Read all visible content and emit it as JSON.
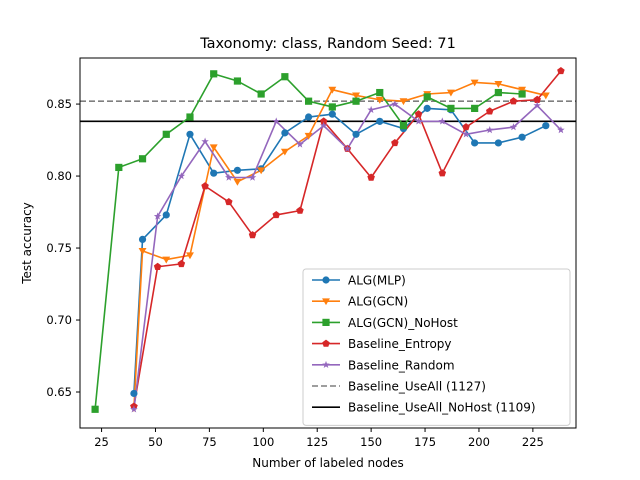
{
  "chart_data": {
    "type": "line",
    "title": "Taxonomy: class, Random Seed: 71",
    "xlabel": "Number of labeled nodes",
    "ylabel": "Test accuracy",
    "xlim": [
      15,
      245
    ],
    "ylim": [
      0.625,
      0.882
    ],
    "xticks": [
      25,
      50,
      75,
      100,
      125,
      150,
      175,
      200,
      225
    ],
    "xtick_labels": [
      "25",
      "50",
      "75",
      "100",
      "125",
      "150",
      "175",
      "200",
      "225"
    ],
    "yticks": [
      0.65,
      0.7,
      0.75,
      0.8,
      0.85
    ],
    "ytick_labels": [
      "0.65",
      "0.70",
      "0.75",
      "0.80",
      "0.85"
    ],
    "grid": false,
    "legend_position": "lower-right",
    "series": [
      {
        "name": "ALG(MLP)",
        "color": "#1f77b4",
        "marker": "circle",
        "x": [
          40,
          44,
          55,
          66,
          77,
          88,
          99,
          110,
          121,
          132,
          143,
          154,
          165,
          176,
          187,
          198,
          209,
          220,
          231
        ],
        "y": [
          0.649,
          0.756,
          0.773,
          0.829,
          0.802,
          0.804,
          0.805,
          0.83,
          0.841,
          0.843,
          0.829,
          0.838,
          0.833,
          0.847,
          0.846,
          0.823,
          0.823,
          0.827,
          0.835
        ]
      },
      {
        "name": "ALG(GCN)",
        "color": "#ff7f0e",
        "marker": "triangle-down",
        "x": [
          40,
          44,
          55,
          66,
          77,
          88,
          99,
          110,
          121,
          132,
          143,
          154,
          165,
          176,
          187,
          198,
          209,
          220,
          231
        ],
        "y": [
          0.639,
          0.748,
          0.742,
          0.745,
          0.82,
          0.796,
          0.804,
          0.817,
          0.828,
          0.86,
          0.856,
          0.853,
          0.852,
          0.857,
          0.858,
          0.865,
          0.864,
          0.86,
          0.856
        ]
      },
      {
        "name": "ALG(GCN)_NoHost",
        "color": "#2ca02c",
        "marker": "square",
        "x": [
          22,
          33,
          44,
          55,
          66,
          77,
          88,
          99,
          110,
          121,
          132,
          143,
          154,
          165,
          176,
          187,
          198,
          209,
          220
        ],
        "y": [
          0.638,
          0.806,
          0.812,
          0.829,
          0.841,
          0.871,
          0.866,
          0.857,
          0.869,
          0.852,
          0.848,
          0.852,
          0.858,
          0.835,
          0.855,
          0.847,
          0.847,
          0.858,
          0.857
        ]
      },
      {
        "name": "Baseline_Entropy",
        "color": "#d62728",
        "marker": "pentagon",
        "x": [
          40,
          51,
          62,
          73,
          84,
          95,
          106,
          117,
          128,
          139,
          150,
          161,
          172,
          183,
          194,
          205,
          216,
          227,
          238
        ],
        "y": [
          0.64,
          0.737,
          0.739,
          0.793,
          0.782,
          0.759,
          0.773,
          0.776,
          0.838,
          0.819,
          0.799,
          0.823,
          0.843,
          0.802,
          0.834,
          0.845,
          0.852,
          0.853,
          0.873
        ]
      },
      {
        "name": "Baseline_Random",
        "color": "#9467bd",
        "marker": "star",
        "x": [
          40,
          51,
          62,
          73,
          84,
          95,
          106,
          117,
          128,
          139,
          150,
          161,
          172,
          183,
          194,
          205,
          216,
          227,
          238
        ],
        "y": [
          0.638,
          0.772,
          0.8,
          0.824,
          0.799,
          0.799,
          0.838,
          0.822,
          0.835,
          0.819,
          0.846,
          0.85,
          0.838,
          0.838,
          0.829,
          0.832,
          0.834,
          0.849,
          0.832
        ]
      }
    ],
    "reference_lines": [
      {
        "name": "Baseline_UseAll (1127)",
        "y": 0.852,
        "color": "#7f7f7f",
        "style": "dashed"
      },
      {
        "name": "Baseline_UseAll_NoHost (1109)",
        "y": 0.838,
        "color": "#000000",
        "style": "solid"
      }
    ]
  }
}
